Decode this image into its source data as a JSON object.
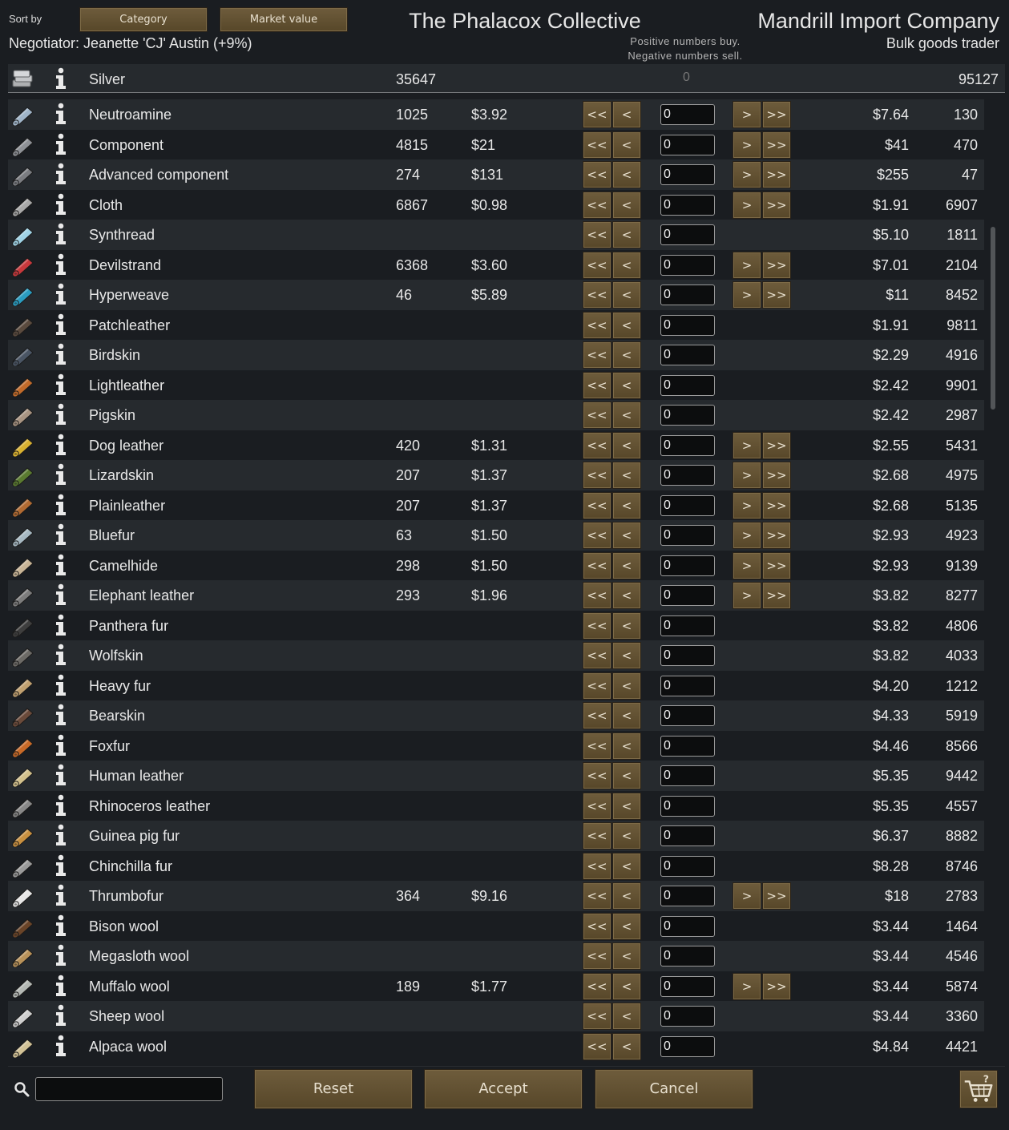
{
  "header": {
    "sort_label": "Sort by",
    "sort_buttons": [
      "Category",
      "Market value"
    ],
    "negotiator": "Negotiator: Jeanette 'CJ' Austin (+9%)",
    "faction_name": "The Phalacox Collective",
    "hint_line1": "Positive numbers buy.",
    "hint_line2": "Negative numbers sell.",
    "trader_name": "Mandrill Import Company",
    "trader_kind": "Bulk goods trader"
  },
  "currency": {
    "label": "Silver",
    "colony_count": "35647",
    "qty": "0",
    "trader_count": "95127"
  },
  "buttons": {
    "sell_all": "<<",
    "sell_one": "<",
    "buy_one": ">",
    "buy_all": ">>"
  },
  "items": [
    {
      "label": "Neutroamine",
      "colony_count": "1025",
      "colony_price": "$3.92",
      "trader_price": "$7.64",
      "trader_count": "130",
      "qty": "0",
      "icon": "neutroamine-icon",
      "color": "#9fb4c8"
    },
    {
      "label": "Component",
      "colony_count": "4815",
      "colony_price": "$21",
      "trader_price": "$41",
      "trader_count": "470",
      "qty": "0",
      "icon": "component-icon",
      "color": "#8e9196"
    },
    {
      "label": "Advanced component",
      "colony_count": "274",
      "colony_price": "$131",
      "trader_price": "$255",
      "trader_count": "47",
      "qty": "0",
      "icon": "advanced-component-icon",
      "color": "#7a7c80"
    },
    {
      "label": "Cloth",
      "colony_count": "6867",
      "colony_price": "$0.98",
      "trader_price": "$1.91",
      "trader_count": "6907",
      "qty": "0",
      "icon": "cloth-icon",
      "color": "#a8a8a8"
    },
    {
      "label": "Synthread",
      "colony_count": "",
      "colony_price": "",
      "trader_price": "$5.10",
      "trader_count": "1811",
      "qty": "0",
      "icon": "synthread-icon",
      "color": "#9fd3e6"
    },
    {
      "label": "Devilstrand",
      "colony_count": "6368",
      "colony_price": "$3.60",
      "trader_price": "$7.01",
      "trader_count": "2104",
      "qty": "0",
      "icon": "devilstrand-icon",
      "color": "#c8383c"
    },
    {
      "label": "Hyperweave",
      "colony_count": "46",
      "colony_price": "$5.89",
      "trader_price": "$11",
      "trader_count": "8452",
      "qty": "0",
      "icon": "hyperweave-icon",
      "color": "#2a9cc0"
    },
    {
      "label": "Patchleather",
      "colony_count": "",
      "colony_price": "",
      "trader_price": "$1.91",
      "trader_count": "9811",
      "qty": "0",
      "icon": "patchleather-icon",
      "color": "#5a4a3e"
    },
    {
      "label": "Birdskin",
      "colony_count": "",
      "colony_price": "",
      "trader_price": "$2.29",
      "trader_count": "4916",
      "qty": "0",
      "icon": "birdskin-icon",
      "color": "#4a5564"
    },
    {
      "label": "Lightleather",
      "colony_count": "",
      "colony_price": "",
      "trader_price": "$2.42",
      "trader_count": "9901",
      "qty": "0",
      "icon": "lightleather-icon",
      "color": "#c06a2a"
    },
    {
      "label": "Pigskin",
      "colony_count": "",
      "colony_price": "",
      "trader_price": "$2.42",
      "trader_count": "2987",
      "qty": "0",
      "icon": "pigskin-icon",
      "color": "#a89482"
    },
    {
      "label": "Dog leather",
      "colony_count": "420",
      "colony_price": "$1.31",
      "trader_price": "$2.55",
      "trader_count": "5431",
      "qty": "0",
      "icon": "dog-leather-icon",
      "color": "#d8b030"
    },
    {
      "label": "Lizardskin",
      "colony_count": "207",
      "colony_price": "$1.37",
      "trader_price": "$2.68",
      "trader_count": "4975",
      "qty": "0",
      "icon": "lizardskin-icon",
      "color": "#5a7a30"
    },
    {
      "label": "Plainleather",
      "colony_count": "207",
      "colony_price": "$1.37",
      "trader_price": "$2.68",
      "trader_count": "5135",
      "qty": "0",
      "icon": "plainleather-icon",
      "color": "#b06a32"
    },
    {
      "label": "Bluefur",
      "colony_count": "63",
      "colony_price": "$1.50",
      "trader_price": "$2.93",
      "trader_count": "4923",
      "qty": "0",
      "icon": "bluefur-icon",
      "color": "#a6b8c2"
    },
    {
      "label": "Camelhide",
      "colony_count": "298",
      "colony_price": "$1.50",
      "trader_price": "$2.93",
      "trader_count": "9139",
      "qty": "0",
      "icon": "camelhide-icon",
      "color": "#c8b496"
    },
    {
      "label": "Elephant leather",
      "colony_count": "293",
      "colony_price": "$1.96",
      "trader_price": "$3.82",
      "trader_count": "8277",
      "qty": "0",
      "icon": "elephant-leather-icon",
      "color": "#7c7c7c"
    },
    {
      "label": "Panthera fur",
      "colony_count": "",
      "colony_price": "",
      "trader_price": "$3.82",
      "trader_count": "4806",
      "qty": "0",
      "icon": "panthera-fur-icon",
      "color": "#3e3e3e"
    },
    {
      "label": "Wolfskin",
      "colony_count": "",
      "colony_price": "",
      "trader_price": "$3.82",
      "trader_count": "4033",
      "qty": "0",
      "icon": "wolfskin-icon",
      "color": "#6c6a66"
    },
    {
      "label": "Heavy fur",
      "colony_count": "",
      "colony_price": "",
      "trader_price": "$4.20",
      "trader_count": "1212",
      "qty": "0",
      "icon": "heavy-fur-icon",
      "color": "#c0a070"
    },
    {
      "label": "Bearskin",
      "colony_count": "",
      "colony_price": "",
      "trader_price": "$4.33",
      "trader_count": "5919",
      "qty": "0",
      "icon": "bearskin-icon",
      "color": "#6a4a3a"
    },
    {
      "label": "Foxfur",
      "colony_count": "",
      "colony_price": "",
      "trader_price": "$4.46",
      "trader_count": "8566",
      "qty": "0",
      "icon": "foxfur-icon",
      "color": "#c86a28"
    },
    {
      "label": "Human leather",
      "colony_count": "",
      "colony_price": "",
      "trader_price": "$5.35",
      "trader_count": "9442",
      "qty": "0",
      "icon": "human-leather-icon",
      "color": "#d2c08c"
    },
    {
      "label": "Rhinoceros leather",
      "colony_count": "",
      "colony_price": "",
      "trader_price": "$5.35",
      "trader_count": "4557",
      "qty": "0",
      "icon": "rhinoceros-leather-icon",
      "color": "#888888"
    },
    {
      "label": "Guinea pig fur",
      "colony_count": "",
      "colony_price": "",
      "trader_price": "$6.37",
      "trader_count": "8882",
      "qty": "0",
      "icon": "guinea-pig-fur-icon",
      "color": "#c89040"
    },
    {
      "label": "Chinchilla fur",
      "colony_count": "",
      "colony_price": "",
      "trader_price": "$8.28",
      "trader_count": "8746",
      "qty": "0",
      "icon": "chinchilla-fur-icon",
      "color": "#9a9a9a"
    },
    {
      "label": "Thrumbofur",
      "colony_count": "364",
      "colony_price": "$9.16",
      "trader_price": "$18",
      "trader_count": "2783",
      "qty": "0",
      "icon": "thrumbofur-icon",
      "color": "#e6e6e6"
    },
    {
      "label": "Bison wool",
      "colony_count": "",
      "colony_price": "",
      "trader_price": "$3.44",
      "trader_count": "1464",
      "qty": "0",
      "icon": "bison-wool-icon",
      "color": "#6a4428"
    },
    {
      "label": "Megasloth wool",
      "colony_count": "",
      "colony_price": "",
      "trader_price": "$3.44",
      "trader_count": "4546",
      "qty": "0",
      "icon": "megasloth-wool-icon",
      "color": "#b8925a"
    },
    {
      "label": "Muffalo wool",
      "colony_count": "189",
      "colony_price": "$1.77",
      "trader_price": "$3.44",
      "trader_count": "5874",
      "qty": "0",
      "icon": "muffalo-wool-icon",
      "color": "#b4b8b4"
    },
    {
      "label": "Sheep wool",
      "colony_count": "",
      "colony_price": "",
      "trader_price": "$3.44",
      "trader_count": "3360",
      "qty": "0",
      "icon": "sheep-wool-icon",
      "color": "#cfcfcf"
    },
    {
      "label": "Alpaca wool",
      "colony_count": "",
      "colony_price": "",
      "trader_price": "$4.84",
      "trader_count": "4421",
      "qty": "0",
      "icon": "alpaca-wool-icon",
      "color": "#d2c296"
    }
  ],
  "footer": {
    "search_value": "",
    "reset": "Reset",
    "accept": "Accept",
    "cancel": "Cancel",
    "cart_icon": "trade-cart-icon"
  }
}
